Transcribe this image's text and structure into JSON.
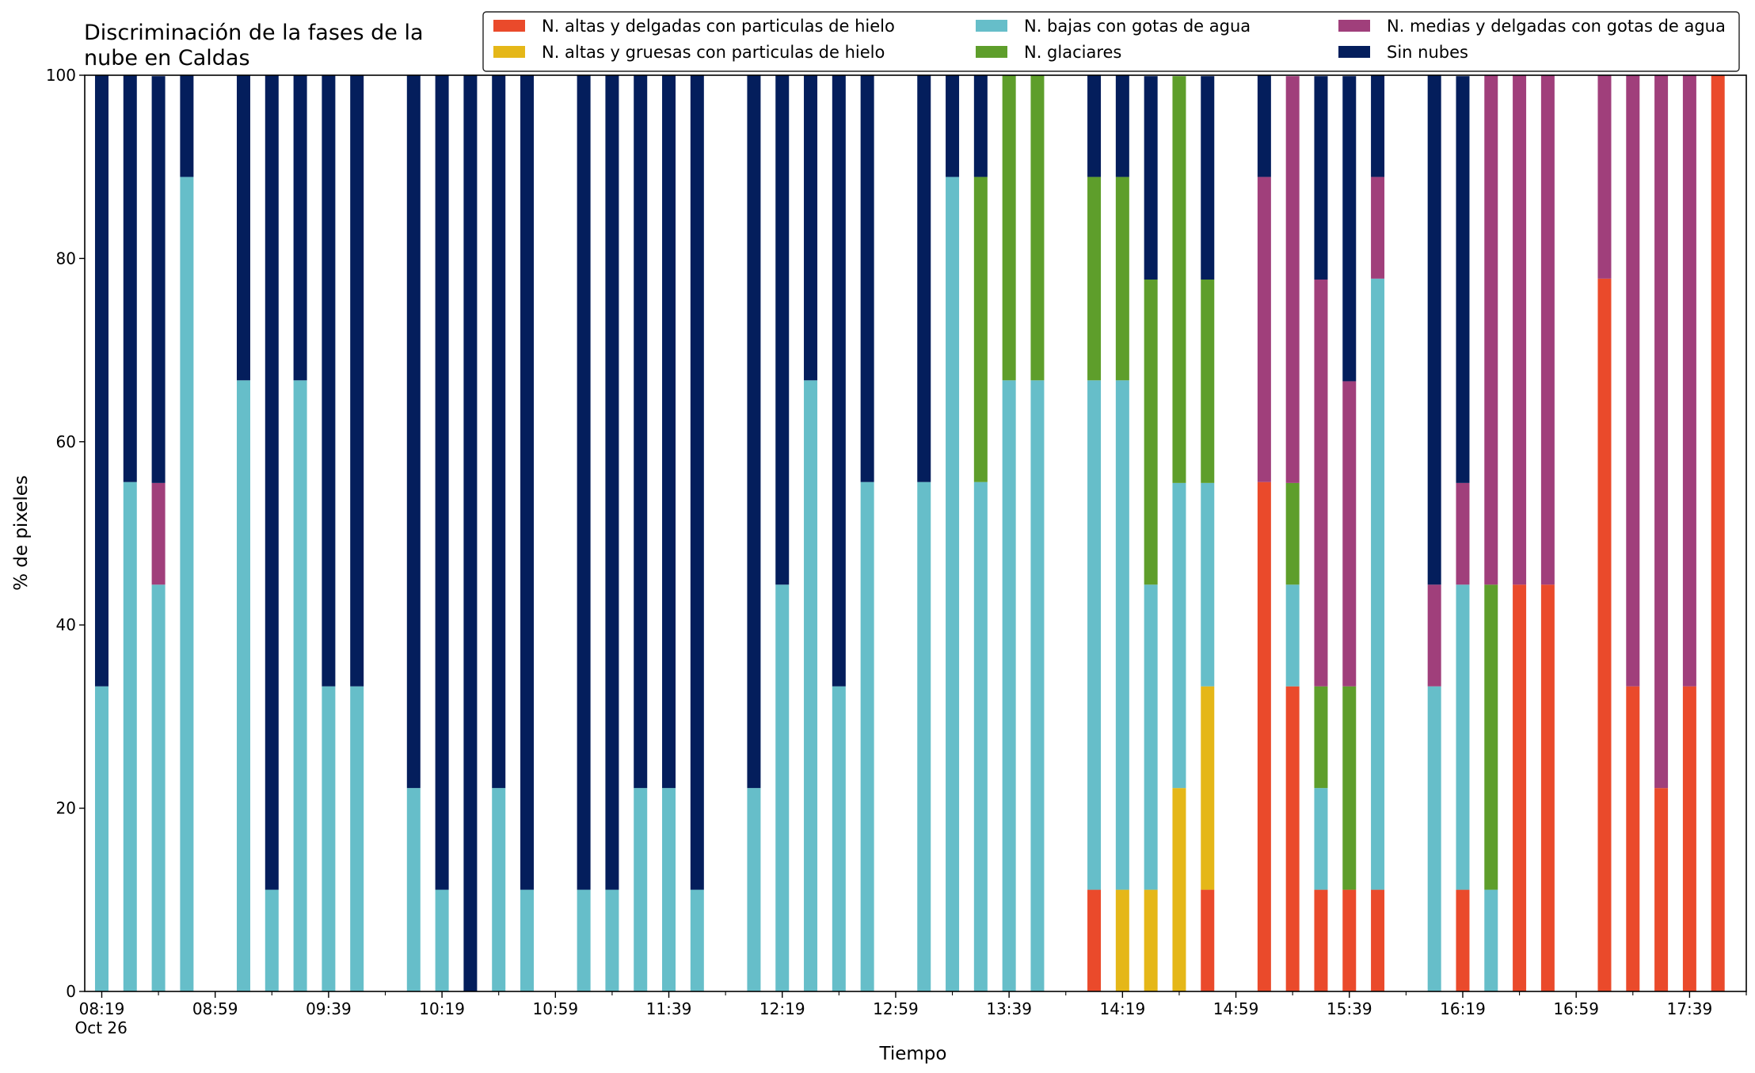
{
  "chart_data": {
    "type": "bar",
    "stacked": true,
    "title": "Discriminación de la fases de la\nnube en Caldas",
    "xlabel": "Tiempo",
    "ylabel": "% de pixeles",
    "ylim": [
      0,
      100
    ],
    "yticks": [
      0,
      20,
      40,
      60,
      80,
      100
    ],
    "xlim": [
      "08:13",
      "17:59"
    ],
    "xtick_labels": [
      "08:19\nOct 26",
      "08:59",
      "09:39",
      "10:19",
      "10:59",
      "11:39",
      "12:19",
      "12:59",
      "13:39",
      "14:19",
      "14:59",
      "15:39",
      "16:19",
      "16:59",
      "17:39"
    ],
    "grid": false,
    "legend_position": "top-right",
    "series": [
      {
        "name": "N. altas y delgadas con particulas de hielo",
        "color": "#ea4a2b"
      },
      {
        "name": "N. altas y gruesas con particulas de hielo",
        "color": "#e5b718"
      },
      {
        "name": "N. bajas con gotas de agua",
        "color": "#66bec9"
      },
      {
        "name": "N. glaciares",
        "color": "#5e9e2b"
      },
      {
        "name": "N. medias y delgadas con gotas de agua",
        "color": "#a03f7b"
      },
      {
        "name": "Sin nubes",
        "color": "#041e5c"
      }
    ],
    "bars": [
      {
        "time": "08:19",
        "values": [
          0,
          0,
          33.3,
          0,
          0,
          66.7
        ]
      },
      {
        "time": "08:29",
        "values": [
          0,
          0,
          55.6,
          0,
          0,
          44.4
        ]
      },
      {
        "time": "08:39",
        "values": [
          0,
          0,
          44.4,
          0,
          11.1,
          44.4
        ]
      },
      {
        "time": "08:49",
        "values": [
          0,
          0,
          88.9,
          0,
          0,
          11.1
        ]
      },
      {
        "time": "09:09",
        "values": [
          0,
          0,
          66.7,
          0,
          0,
          33.3
        ]
      },
      {
        "time": "09:19",
        "values": [
          0,
          0,
          11.1,
          0,
          0,
          88.9
        ]
      },
      {
        "time": "09:29",
        "values": [
          0,
          0,
          66.7,
          0,
          0,
          33.3
        ]
      },
      {
        "time": "09:39",
        "values": [
          0,
          0,
          33.3,
          0,
          0,
          66.7
        ]
      },
      {
        "time": "09:49",
        "values": [
          0,
          0,
          33.3,
          0,
          0,
          66.7
        ]
      },
      {
        "time": "10:09",
        "values": [
          0,
          0,
          22.2,
          0,
          0,
          77.8
        ]
      },
      {
        "time": "10:19",
        "values": [
          0,
          0,
          11.1,
          0,
          0,
          88.9
        ]
      },
      {
        "time": "10:29",
        "values": [
          0,
          0,
          0,
          0,
          0,
          100
        ]
      },
      {
        "time": "10:39",
        "values": [
          0,
          0,
          22.2,
          0,
          0,
          77.8
        ]
      },
      {
        "time": "10:49",
        "values": [
          0,
          0,
          11.1,
          0,
          0,
          88.9
        ]
      },
      {
        "time": "11:09",
        "values": [
          0,
          0,
          11.1,
          0,
          0,
          88.9
        ]
      },
      {
        "time": "11:19",
        "values": [
          0,
          0,
          11.1,
          0,
          0,
          88.9
        ]
      },
      {
        "time": "11:29",
        "values": [
          0,
          0,
          22.2,
          0,
          0,
          77.8
        ]
      },
      {
        "time": "11:39",
        "values": [
          0,
          0,
          22.2,
          0,
          0,
          77.8
        ]
      },
      {
        "time": "11:49",
        "values": [
          0,
          0,
          11.1,
          0,
          0,
          88.9
        ]
      },
      {
        "time": "12:09",
        "values": [
          0,
          0,
          22.2,
          0,
          0,
          77.8
        ]
      },
      {
        "time": "12:19",
        "values": [
          0,
          0,
          44.4,
          0,
          0,
          55.6
        ]
      },
      {
        "time": "12:29",
        "values": [
          0,
          0,
          66.7,
          0,
          0,
          33.3
        ]
      },
      {
        "time": "12:39",
        "values": [
          0,
          0,
          33.3,
          0,
          0,
          66.7
        ]
      },
      {
        "time": "12:49",
        "values": [
          0,
          0,
          55.6,
          0,
          0,
          44.4
        ]
      },
      {
        "time": "13:09",
        "values": [
          0,
          0,
          55.6,
          0,
          0,
          44.4
        ]
      },
      {
        "time": "13:19",
        "values": [
          0,
          0,
          88.9,
          0,
          0,
          11.1
        ]
      },
      {
        "time": "13:29",
        "values": [
          0,
          0,
          55.6,
          33.3,
          0,
          11.1
        ]
      },
      {
        "time": "13:39",
        "values": [
          0,
          0,
          66.7,
          33.3,
          0,
          0
        ]
      },
      {
        "time": "13:49",
        "values": [
          0,
          0,
          66.7,
          33.3,
          0,
          0
        ]
      },
      {
        "time": "14:09",
        "values": [
          11.1,
          0,
          55.6,
          22.2,
          0,
          11.1
        ]
      },
      {
        "time": "14:19",
        "values": [
          0,
          11.1,
          55.6,
          22.2,
          0,
          11.1
        ]
      },
      {
        "time": "14:29",
        "values": [
          0,
          11.1,
          33.3,
          33.3,
          0,
          22.2
        ]
      },
      {
        "time": "14:39",
        "values": [
          0,
          22.2,
          33.3,
          44.4,
          0,
          0
        ]
      },
      {
        "time": "14:49",
        "values": [
          11.1,
          22.2,
          22.2,
          22.2,
          0,
          22.2
        ]
      },
      {
        "time": "15:09",
        "values": [
          55.6,
          0,
          0,
          0,
          33.3,
          11.1
        ]
      },
      {
        "time": "15:19",
        "values": [
          33.3,
          0,
          11.1,
          11.1,
          44.4,
          0
        ]
      },
      {
        "time": "15:29",
        "values": [
          11.1,
          0,
          11.1,
          11.1,
          44.4,
          22.2
        ]
      },
      {
        "time": "15:39",
        "values": [
          11.1,
          0,
          0,
          22.2,
          33.3,
          33.3
        ]
      },
      {
        "time": "15:49",
        "values": [
          11.1,
          0,
          66.7,
          0,
          11.1,
          11.1
        ]
      },
      {
        "time": "16:09",
        "values": [
          0,
          0,
          33.3,
          0,
          11.1,
          55.6
        ]
      },
      {
        "time": "16:19",
        "values": [
          11.1,
          0,
          33.3,
          0,
          11.1,
          44.4
        ]
      },
      {
        "time": "16:29",
        "values": [
          0,
          0,
          11.1,
          33.3,
          55.6,
          0
        ]
      },
      {
        "time": "16:39",
        "values": [
          44.4,
          0,
          0,
          0,
          55.6,
          0
        ]
      },
      {
        "time": "16:49",
        "values": [
          44.4,
          0,
          0,
          0,
          55.6,
          0
        ]
      },
      {
        "time": "17:09",
        "values": [
          77.8,
          0,
          0,
          0,
          22.2,
          0
        ]
      },
      {
        "time": "17:19",
        "values": [
          33.3,
          0,
          0,
          0,
          66.7,
          0
        ]
      },
      {
        "time": "17:29",
        "values": [
          22.2,
          0,
          0,
          0,
          77.8,
          0
        ]
      },
      {
        "time": "17:39",
        "values": [
          33.3,
          0,
          0,
          0,
          66.7,
          0
        ]
      },
      {
        "time": "17:49",
        "values": [
          100,
          0,
          0,
          0,
          0,
          0
        ]
      }
    ]
  }
}
